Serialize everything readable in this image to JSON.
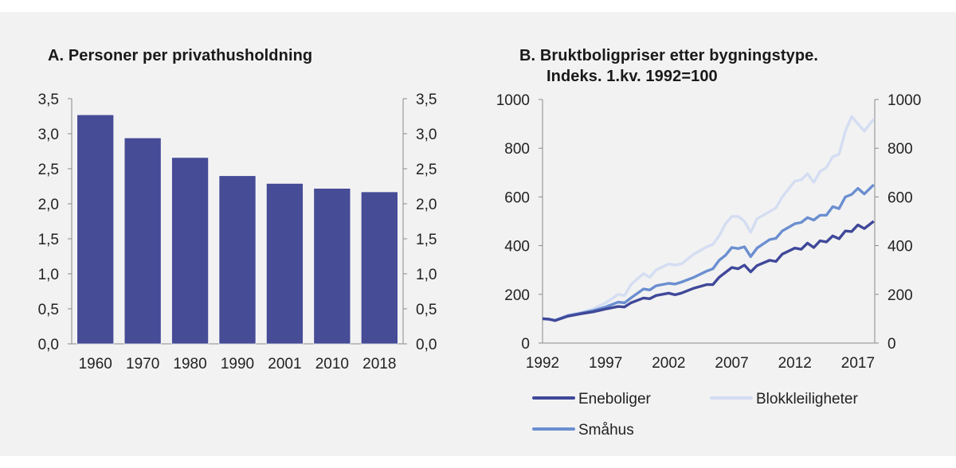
{
  "chart_data": [
    {
      "type": "bar",
      "title": "A.  Personer per privathusholdning",
      "categories": [
        "1960",
        "1970",
        "1980",
        "1990",
        "2001",
        "2010",
        "2018"
      ],
      "values": [
        3.27,
        2.94,
        2.66,
        2.4,
        2.29,
        2.22,
        2.17
      ],
      "ylim": [
        0,
        3.5
      ],
      "yticks": [
        "0,0",
        "0,5",
        "1,0",
        "1,5",
        "2,0",
        "2,5",
        "3,0",
        "3,5"
      ],
      "ytick_values": [
        0,
        0.5,
        1,
        1.5,
        2,
        2.5,
        3,
        3.5
      ],
      "xlabel": "",
      "ylabel": "",
      "color": "#464c96",
      "grid": false
    },
    {
      "type": "line",
      "title_line1": "B.  Bruktboligpriser etter bygningstype.",
      "title_line2": "Indeks. 1.kv. 1992=100",
      "xlim": [
        1992,
        2018.33
      ],
      "ylim": [
        0,
        1000
      ],
      "xticks": [
        "1992",
        "1997",
        "2002",
        "2007",
        "2012",
        "2017"
      ],
      "xtick_values": [
        1992,
        1997,
        2002,
        2007,
        2012,
        2017
      ],
      "yticks": [
        "0",
        "200",
        "400",
        "600",
        "800",
        "1000"
      ],
      "ytick_values": [
        0,
        200,
        400,
        600,
        800,
        1000
      ],
      "grid": false,
      "legend_position": "bottom",
      "series": [
        {
          "name": "Eneboliger",
          "color": "#3f4899",
          "x": [
            1992,
            1992.5,
            1993,
            1994,
            1995,
            1996,
            1997,
            1998,
            1998.5,
            1999,
            2000,
            2000.5,
            2001,
            2002,
            2002.5,
            2003,
            2004,
            2005,
            2005.5,
            2006,
            2007,
            2007.5,
            2008,
            2008.5,
            2009,
            2010,
            2010.5,
            2011,
            2012,
            2012.5,
            2013,
            2013.5,
            2014,
            2014.5,
            2015,
            2015.5,
            2016,
            2016.5,
            2017,
            2017.5,
            2018.25
          ],
          "y": [
            100,
            98,
            92,
            110,
            120,
            128,
            140,
            150,
            148,
            165,
            185,
            182,
            195,
            205,
            198,
            205,
            225,
            240,
            240,
            270,
            310,
            305,
            320,
            292,
            318,
            340,
            335,
            365,
            390,
            385,
            410,
            392,
            420,
            415,
            440,
            428,
            460,
            458,
            485,
            470,
            500
          ]
        },
        {
          "name": "Blokkleiligheter",
          "color": "#d4ddf2",
          "x": [
            1992,
            1992.5,
            1993,
            1994,
            1995,
            1996,
            1997,
            1998,
            1998.5,
            1999,
            2000,
            2000.5,
            2001,
            2002,
            2002.5,
            2003,
            2004,
            2005,
            2005.5,
            2006,
            2006.5,
            2007,
            2007.5,
            2008,
            2008.5,
            2009,
            2010,
            2010.5,
            2011,
            2012,
            2012.5,
            2013,
            2013.5,
            2014,
            2014.5,
            2015,
            2015.5,
            2016,
            2016.5,
            2017,
            2017.5,
            2018.25
          ],
          "y": [
            100,
            98,
            95,
            115,
            125,
            140,
            165,
            200,
            195,
            240,
            285,
            270,
            300,
            325,
            320,
            325,
            365,
            395,
            405,
            440,
            490,
            520,
            520,
            500,
            455,
            510,
            540,
            555,
            600,
            665,
            670,
            695,
            660,
            705,
            720,
            765,
            775,
            870,
            930,
            900,
            870,
            920
          ]
        },
        {
          "name": "Småhus",
          "color": "#6b8fd0",
          "x": [
            1992,
            1992.5,
            1993,
            1994,
            1995,
            1996,
            1997,
            1998,
            1998.5,
            1999,
            2000,
            2000.5,
            2001,
            2002,
            2002.5,
            2003,
            2004,
            2005,
            2005.5,
            2006,
            2006.5,
            2007,
            2007.5,
            2008,
            2008.5,
            2009,
            2010,
            2010.5,
            2011,
            2012,
            2012.5,
            2013,
            2013.5,
            2014,
            2014.5,
            2015,
            2015.5,
            2016,
            2016.5,
            2017,
            2017.5,
            2018.25
          ],
          "y": [
            100,
            98,
            93,
            112,
            122,
            133,
            148,
            168,
            165,
            185,
            222,
            218,
            235,
            245,
            242,
            250,
            270,
            295,
            305,
            340,
            360,
            392,
            388,
            395,
            355,
            390,
            425,
            430,
            460,
            490,
            495,
            515,
            505,
            525,
            525,
            560,
            552,
            600,
            610,
            635,
            612,
            650
          ]
        }
      ]
    }
  ]
}
